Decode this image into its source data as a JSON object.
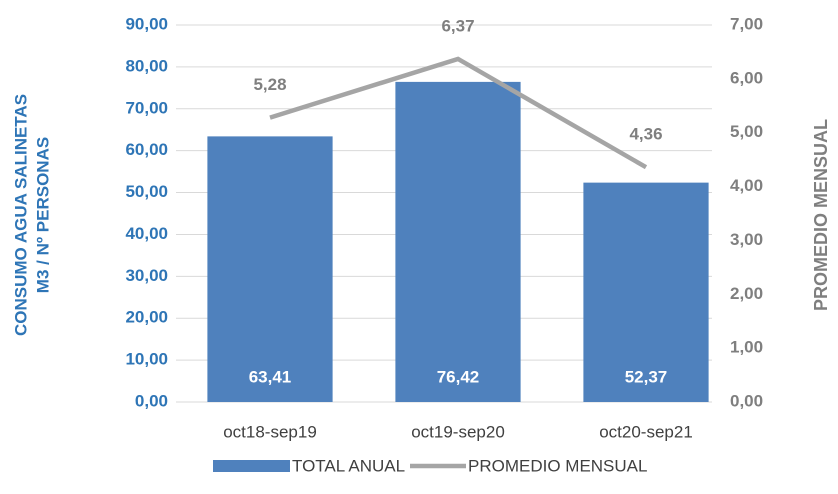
{
  "chart_data": {
    "type": "bar",
    "categories": [
      "oct18-sep19",
      "oct19-sep20",
      "oct20-sep21"
    ],
    "series": [
      {
        "name": "TOTAL ANUAL",
        "type": "bar",
        "color": "#4f81bd",
        "values": [
          63.41,
          76.42,
          52.37
        ],
        "value_labels": [
          "63,41",
          "76,42",
          "52,37"
        ]
      },
      {
        "name": "PROMEDIO MENSUAL",
        "type": "line",
        "axis": "y2",
        "color": "#a5a5a5",
        "values": [
          5.28,
          6.37,
          4.36
        ],
        "value_labels": [
          "5,28",
          "6,37",
          "4,36"
        ]
      }
    ],
    "y_label": [
      "CONSUMO AGUA SALINETAS",
      "M3 / Nº PERSONAS"
    ],
    "y2_label": "PROMEDIO MENSUAL",
    "ylim": [
      0,
      90
    ],
    "yticks": [
      {
        "value": 0,
        "label": "0,00"
      },
      {
        "value": 10,
        "label": "10,00"
      },
      {
        "value": 20,
        "label": "20,00"
      },
      {
        "value": 30,
        "label": "30,00"
      },
      {
        "value": 40,
        "label": "40,00"
      },
      {
        "value": 50,
        "label": "50,00"
      },
      {
        "value": 60,
        "label": "60,00"
      },
      {
        "value": 70,
        "label": "70,00"
      },
      {
        "value": 80,
        "label": "80,00"
      },
      {
        "value": 90,
        "label": "90,00"
      }
    ],
    "y2lim": [
      0,
      7
    ],
    "y2ticks": [
      {
        "value": 0,
        "label": "0,00"
      },
      {
        "value": 1,
        "label": "1,00"
      },
      {
        "value": 2,
        "label": "2,00"
      },
      {
        "value": 3,
        "label": "3,00"
      },
      {
        "value": 4,
        "label": "4,00"
      },
      {
        "value": 5,
        "label": "5,00"
      },
      {
        "value": 6,
        "label": "6,00"
      },
      {
        "value": 7,
        "label": "7,00"
      }
    ],
    "grid": true,
    "legend": "bottom"
  }
}
